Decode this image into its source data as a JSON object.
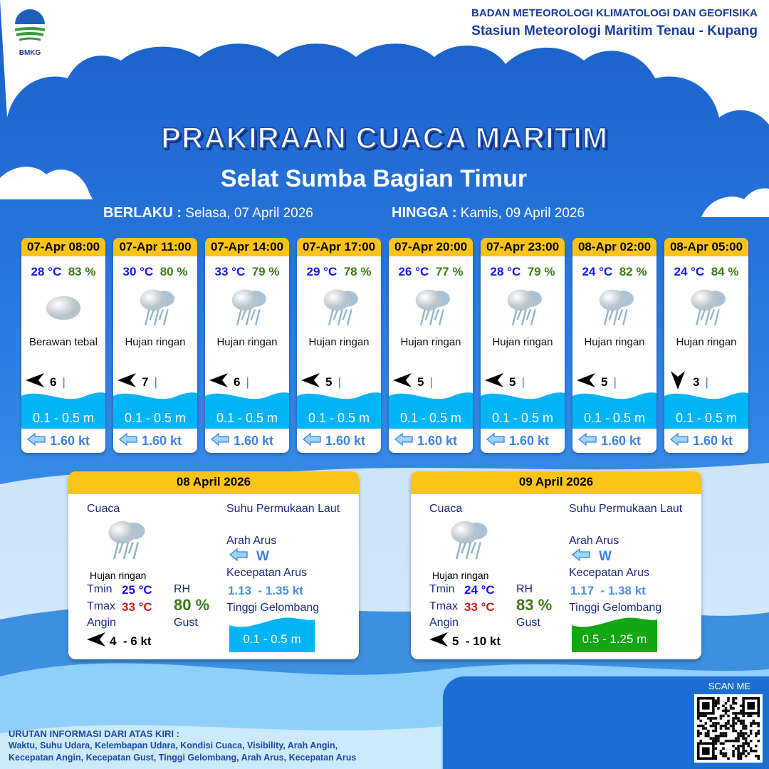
{
  "header": {
    "logo_text": "BMKG",
    "org_line1": "BADAN METEOROLOGI KLIMATOLOGI DAN GEOFISIKA",
    "org_line2": "Stasiun Meteorologi Maritim Tenau - Kupang"
  },
  "title": "PRAKIRAAN CUACA MARITIM",
  "subtitle": "Selat Sumba Bagian Timur",
  "validity": {
    "from_label": "BERLAKU :",
    "from_value": "Selasa, 07 April 2026",
    "to_label": "HINGGA :",
    "to_value": "Kamis, 09 April 2026"
  },
  "colors": {
    "header_yellow": "#fcc419",
    "temp": "#1414ee",
    "rh": "#3a7a14",
    "tmax": "#cc1a1a",
    "wave_blue": "#00b4f5",
    "wave_green": "#13a713"
  },
  "forecasts": [
    {
      "time": "07-Apr 08:00",
      "temp": "28 °C",
      "rh": "83 %",
      "icon": "cloudy-icon",
      "condition": "Berawan tebal",
      "wind_dir": "west",
      "wind_speed": "6",
      "gust": "|",
      "wave": "0.1 - 0.5 m",
      "current_dir": "west",
      "current": "1.60 kt"
    },
    {
      "time": "07-Apr 11:00",
      "temp": "30 °C",
      "rh": "80 %",
      "icon": "light-rain-icon",
      "condition": "Hujan ringan",
      "wind_dir": "west",
      "wind_speed": "7",
      "gust": "|",
      "wave": "0.1 - 0.5 m",
      "current_dir": "west",
      "current": "1.60 kt"
    },
    {
      "time": "07-Apr 14:00",
      "temp": "33 °C",
      "rh": "79 %",
      "icon": "light-rain-icon",
      "condition": "Hujan ringan",
      "wind_dir": "west",
      "wind_speed": "6",
      "gust": "|",
      "wave": "0.1 - 0.5 m",
      "current_dir": "west",
      "current": "1.60 kt"
    },
    {
      "time": "07-Apr 17:00",
      "temp": "29 °C",
      "rh": "78 %",
      "icon": "light-rain-icon",
      "condition": "Hujan ringan",
      "wind_dir": "west",
      "wind_speed": "5",
      "gust": "|",
      "wave": "0.1 - 0.5 m",
      "current_dir": "west",
      "current": "1.60 kt"
    },
    {
      "time": "07-Apr 20:00",
      "temp": "26 °C",
      "rh": "77 %",
      "icon": "light-rain-icon",
      "condition": "Hujan ringan",
      "wind_dir": "west",
      "wind_speed": "5",
      "gust": "|",
      "wave": "0.1 - 0.5 m",
      "current_dir": "west",
      "current": "1.60 kt"
    },
    {
      "time": "07-Apr 23:00",
      "temp": "28 °C",
      "rh": "79 %",
      "icon": "light-rain-icon",
      "condition": "Hujan ringan",
      "wind_dir": "west",
      "wind_speed": "5",
      "gust": "|",
      "wave": "0.1 - 0.5 m",
      "current_dir": "west",
      "current": "1.60 kt"
    },
    {
      "time": "08-Apr 02:00",
      "temp": "24 °C",
      "rh": "82 %",
      "icon": "light-rain-icon",
      "condition": "Hujan ringan",
      "wind_dir": "west",
      "wind_speed": "5",
      "gust": "|",
      "wave": "0.1 - 0.5 m",
      "current_dir": "west",
      "current": "1.60 kt"
    },
    {
      "time": "08-Apr 05:00",
      "temp": "24 °C",
      "rh": "84 %",
      "icon": "light-rain-icon",
      "condition": "Hujan ringan",
      "wind_dir": "south",
      "wind_speed": "3",
      "gust": "|",
      "wave": "0.1 - 0.5 m",
      "current_dir": "west",
      "current": "1.60 kt"
    }
  ],
  "labels": {
    "weather": "Cuaca",
    "sst": "Suhu Permukaan Laut",
    "current_dir": "Arah Arus",
    "current_speed": "Kecepatan Arus",
    "wave": "Tinggi Gelombang",
    "tmin": "Tmin",
    "tmax": "Tmax",
    "rh": "RH",
    "wind": "Angin",
    "gust": "Gust"
  },
  "daily": [
    {
      "date": "08 April 2026",
      "condition": "Hujan ringan",
      "tmin": "25 °C",
      "tmax": "33 °C",
      "rh": "80 %",
      "wind": "4  - 6 kt",
      "current_dir": "W",
      "current_speed": "1.13  - 1.35 kt",
      "wave": "0.1 - 0.5 m",
      "wave_color": "#00b4f5"
    },
    {
      "date": "09 April 2026",
      "condition": "Hujan ringan",
      "tmin": "24 °C",
      "tmax": "33 °C",
      "rh": "83 %",
      "wind": "5  - 10 kt",
      "current_dir": "W",
      "current_speed": "1.17  - 1.38 kt",
      "wave": "0.5 - 1.25 m",
      "wave_color": "#13a713"
    }
  ],
  "footer": {
    "heading": "URUTAN INFORMASI DARI ATAS KIRI :",
    "line1": "Waktu, Suhu Udara, Kelembapan Udara, Kondisi Cuaca, Visibility, Arah Angin,",
    "line2": "Kecepatan Angin, Kecepatan Gust, Tinggi Gelombang, Arah Arus, Kecepatan Arus",
    "scan": "SCAN ME"
  }
}
